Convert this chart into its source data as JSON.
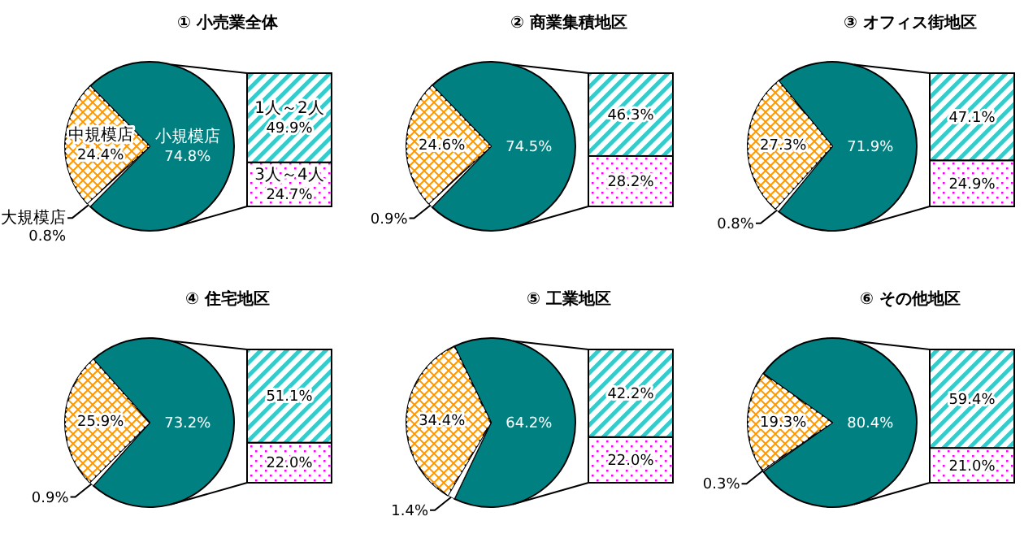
{
  "chart_data": [
    {
      "type": "pie",
      "title": "① 小売業全体",
      "categories": [
        "小規模店",
        "大規模店",
        "中規模店"
      ],
      "values": [
        74.8,
        0.8,
        24.4
      ],
      "value_labels": [
        "74.8%",
        "0.8%",
        "24.4%"
      ],
      "colors": [
        "#008080",
        "#ffffff",
        "#ff9900"
      ]
    },
    {
      "type": "bar",
      "stacked": true,
      "categories": [
        null
      ],
      "series": [
        {
          "name": "3人～4人",
          "color": "#ff00ff",
          "values": [
            24.7
          ],
          "value_labels": [
            "24.7%"
          ]
        },
        {
          "name": "1人～2人",
          "color": "#33cccc",
          "values": [
            49.9
          ],
          "value_labels": [
            "49.9%"
          ]
        }
      ]
    },
    {
      "type": "pie",
      "title": "② 商業集積地区",
      "categories": [
        null,
        null,
        null
      ],
      "values": [
        74.5,
        0.9,
        24.6
      ],
      "value_labels": [
        "74.5%",
        "0.9%",
        "24.6%"
      ],
      "colors": [
        "#008080",
        "#ffffff",
        "#ff9900"
      ]
    },
    {
      "type": "bar",
      "stacked": true,
      "categories": [
        null
      ],
      "series": [
        {
          "color": "#ff00ff",
          "values": [
            28.2
          ],
          "value_labels": [
            "28.2%"
          ]
        },
        {
          "color": "#33cccc",
          "values": [
            46.3
          ],
          "value_labels": [
            "46.3%"
          ]
        }
      ]
    },
    {
      "type": "pie",
      "title": "③ オフィス街地区",
      "categories": [
        null,
        null,
        null
      ],
      "values": [
        71.9,
        0.8,
        27.3
      ],
      "value_labels": [
        "71.9%",
        "0.8%",
        "27.3%"
      ],
      "colors": [
        "#008080",
        "#ffffff",
        "#ff9900"
      ]
    },
    {
      "type": "bar",
      "stacked": true,
      "categories": [
        null
      ],
      "series": [
        {
          "color": "#ff00ff",
          "values": [
            24.9
          ],
          "value_labels": [
            "24.9%"
          ]
        },
        {
          "color": "#33cccc",
          "values": [
            47.1
          ],
          "value_labels": [
            "47.1%"
          ]
        }
      ]
    },
    {
      "type": "pie",
      "title": "④ 住宅地区",
      "categories": [
        null,
        null,
        null
      ],
      "values": [
        73.2,
        0.9,
        25.9
      ],
      "value_labels": [
        "73.2%",
        "0.9%",
        "25.9%"
      ],
      "colors": [
        "#008080",
        "#ffffff",
        "#ff9900"
      ]
    },
    {
      "type": "bar",
      "stacked": true,
      "categories": [
        null
      ],
      "series": [
        {
          "color": "#ff00ff",
          "values": [
            22.0
          ],
          "value_labels": [
            "22.0%"
          ]
        },
        {
          "color": "#33cccc",
          "values": [
            51.1
          ],
          "value_labels": [
            "51.1%"
          ]
        }
      ]
    },
    {
      "type": "pie",
      "title": "⑤ 工業地区",
      "categories": [
        null,
        null,
        null
      ],
      "values": [
        64.2,
        1.4,
        34.4
      ],
      "value_labels": [
        "64.2%",
        "1.4%",
        "34.4%"
      ],
      "colors": [
        "#008080",
        "#ffffff",
        "#ff9900"
      ]
    },
    {
      "type": "bar",
      "stacked": true,
      "categories": [
        null
      ],
      "series": [
        {
          "color": "#ff00ff",
          "values": [
            22.0
          ],
          "value_labels": [
            "22.0%"
          ]
        },
        {
          "color": "#33cccc",
          "values": [
            42.2
          ],
          "value_labels": [
            "42.2%"
          ]
        }
      ]
    },
    {
      "type": "pie",
      "title": "⑥ その他地区",
      "categories": [
        null,
        null,
        null
      ],
      "values": [
        80.4,
        0.3,
        19.3
      ],
      "value_labels": [
        "80.4%",
        "0.3%",
        "19.3%"
      ],
      "colors": [
        "#008080",
        "#ffffff",
        "#ff9900"
      ]
    },
    {
      "type": "bar",
      "stacked": true,
      "categories": [
        null
      ],
      "series": [
        {
          "color": "#ff00ff",
          "values": [
            21.0
          ],
          "value_labels": [
            "21.0%"
          ]
        },
        {
          "color": "#33cccc",
          "values": [
            59.4
          ],
          "value_labels": [
            "59.4%"
          ]
        }
      ]
    }
  ]
}
